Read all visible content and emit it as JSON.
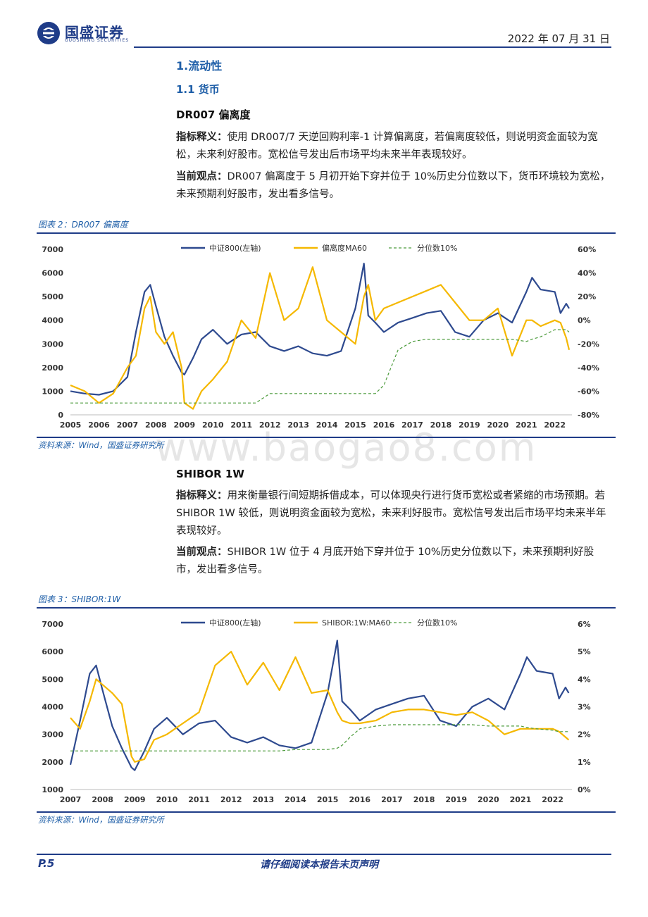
{
  "header": {
    "company_cn": "国盛证券",
    "company_en": "GUOSHENG SECURITIES",
    "date": "2022 年 07 月 31 日"
  },
  "section": {
    "h1": "1.流动性",
    "h2": "1.1 货币"
  },
  "dr007": {
    "title": "DR007 偏离度",
    "def_label": "指标释义：",
    "def_text": "使用 DR007/7 天逆回购利率-1 计算偏离度，若偏离度较低，则说明资金面较为宽松，未来利好股市。宽松信号发出后市场平均未来半年表现较好。",
    "view_label": "当前观点：",
    "view_text": "DR007 偏离度于 5 月初开始下穿并位于 10%历史分位数以下，货币环境较为宽松，未来预期利好股市，发出看多信号。"
  },
  "shibor": {
    "title": "SHIBOR 1W",
    "def_label": "指标释义：",
    "def_text": "用来衡量银行间短期拆借成本，可以体现央行进行货币宽松或者紧缩的市场预期。若 SHIBOR 1W 较低，则说明资金面较为宽松，未来利好股市。宽松信号发出后市场平均未来半年表现较好。",
    "view_label": "当前观点：",
    "view_text": "SHIBOR 1W 位于 4 月底开始下穿并位于 10%历史分位数以下，未来预期利好股市，发出看多信号。"
  },
  "figures": {
    "fig2_caption": "图表 2：DR007 偏离度",
    "fig3_caption": "图表 3：SHIBOR:1W",
    "source1": "资料来源：Wind，国盛证券研究所",
    "source2": "资料来源：Wind，国盛证券研究所"
  },
  "watermark": "www.baogao8.com",
  "footer": {
    "page": "P.5",
    "disclaimer": "请仔细阅读本报告末页声明"
  },
  "colors": {
    "brand": "#1f3c88",
    "series_blue": "#2e4a8f",
    "series_yellow": "#f5b800",
    "series_green": "#4a9a3a"
  },
  "chart_data": [
    {
      "type": "line",
      "title": "",
      "x": [
        2005,
        2005.5,
        2006,
        2006.5,
        2007,
        2007.3,
        2007.6,
        2007.8,
        2008,
        2008.3,
        2008.6,
        2008.9,
        2009,
        2009.3,
        2009.6,
        2010,
        2010.5,
        2011,
        2011.5,
        2012,
        2012.5,
        2013,
        2013.5,
        2014,
        2014.5,
        2015,
        2015.3,
        2015.45,
        2015.7,
        2016,
        2016.5,
        2017,
        2017.5,
        2018,
        2018.5,
        2019,
        2019.5,
        2020,
        2020.5,
        2021,
        2021.2,
        2021.5,
        2022,
        2022.2,
        2022.4,
        2022.5
      ],
      "x_ticks": [
        "2005",
        "2006",
        "2007",
        "2008",
        "2009",
        "2010",
        "2011",
        "2012",
        "2013",
        "2014",
        "2015",
        "2016",
        "2017",
        "2018",
        "2019",
        "2020",
        "2021",
        "2022"
      ],
      "xlim": [
        2005,
        2022.6
      ],
      "series": [
        {
          "name": "中证800(左轴)",
          "axis": "left",
          "color": "#2e4a8f",
          "values": [
            1000,
            900,
            850,
            1000,
            1600,
            3500,
            5200,
            5500,
            4600,
            3300,
            2500,
            1800,
            1700,
            2400,
            3200,
            3600,
            3000,
            3400,
            3500,
            2900,
            2700,
            2900,
            2600,
            2500,
            2700,
            4500,
            6400,
            4200,
            3900,
            3500,
            3900,
            4100,
            4300,
            4400,
            3500,
            3300,
            4000,
            4300,
            3900,
            5200,
            5800,
            5300,
            5200,
            4300,
            4700,
            4500
          ]
        },
        {
          "name": "偏离度MA60",
          "axis": "right",
          "color": "#f5b800",
          "values": [
            -55,
            -60,
            -70,
            -62,
            -40,
            -30,
            10,
            20,
            -10,
            -20,
            -10,
            -40,
            -70,
            -75,
            -60,
            -50,
            -35,
            0,
            -15,
            40,
            0,
            10,
            45,
            0,
            -10,
            -20,
            20,
            30,
            0,
            10,
            15,
            20,
            25,
            30,
            15,
            0,
            0,
            10,
            -30,
            0,
            0,
            -5,
            0,
            -2,
            -15,
            -25
          ]
        },
        {
          "name": "分位数10%",
          "axis": "right",
          "color": "#4a9a3a",
          "values": [
            -70,
            -70,
            -70,
            -70,
            -70,
            -70,
            -70,
            -70,
            -70,
            -70,
            -70,
            -70,
            -70,
            -70,
            -70,
            -70,
            -70,
            -70,
            -70,
            -62,
            -62,
            -62,
            -62,
            -62,
            -62,
            -62,
            -62,
            -62,
            -62,
            -55,
            -25,
            -18,
            -16,
            -16,
            -16,
            -16,
            -16,
            -16,
            -16,
            -18,
            -16,
            -14,
            -8,
            -8,
            -8,
            -10
          ]
        }
      ],
      "ylim_left": [
        0,
        7000
      ],
      "yticks_left": [
        "0",
        "1000",
        "2000",
        "3000",
        "4000",
        "5000",
        "6000",
        "7000"
      ],
      "ylim_right": [
        -80,
        60
      ],
      "yticks_right": [
        "-80%",
        "-60%",
        "-40%",
        "-20%",
        "0%",
        "20%",
        "40%",
        "60%"
      ],
      "legend": "top-center",
      "grid": false
    },
    {
      "type": "line",
      "title": "",
      "x": [
        2007,
        2007.3,
        2007.6,
        2007.8,
        2008,
        2008.3,
        2008.6,
        2008.9,
        2009,
        2009.3,
        2009.6,
        2010,
        2010.5,
        2011,
        2011.5,
        2012,
        2012.5,
        2013,
        2013.5,
        2014,
        2014.5,
        2015,
        2015.3,
        2015.45,
        2015.7,
        2016,
        2016.5,
        2017,
        2017.5,
        2018,
        2018.5,
        2019,
        2019.5,
        2020,
        2020.5,
        2021,
        2021.2,
        2021.5,
        2022,
        2022.2,
        2022.4,
        2022.5
      ],
      "x_ticks": [
        "2007",
        "2008",
        "2009",
        "2010",
        "2011",
        "2012",
        "2013",
        "2014",
        "2015",
        "2016",
        "2017",
        "2018",
        "2019",
        "2020",
        "2021",
        "2022"
      ],
      "xlim": [
        2007,
        2022.6
      ],
      "series": [
        {
          "name": "中证800(左轴)",
          "axis": "left",
          "color": "#2e4a8f",
          "values": [
            1900,
            3500,
            5200,
            5500,
            4600,
            3300,
            2500,
            1800,
            1700,
            2400,
            3200,
            3600,
            3000,
            3400,
            3500,
            2900,
            2700,
            2900,
            2600,
            2500,
            2700,
            4500,
            6400,
            4200,
            3900,
            3500,
            3900,
            4100,
            4300,
            4400,
            3500,
            3300,
            4000,
            4300,
            3900,
            5200,
            5800,
            5300,
            5200,
            4300,
            4700,
            4500
          ]
        },
        {
          "name": "SHIBOR:1W:MA60",
          "axis": "right",
          "color": "#f5b800",
          "values": [
            2.6,
            2.2,
            3.2,
            4.0,
            3.8,
            3.5,
            3.1,
            1.2,
            1.0,
            1.1,
            1.8,
            2.0,
            2.4,
            2.8,
            4.5,
            5.0,
            3.8,
            4.6,
            3.6,
            4.8,
            3.5,
            3.6,
            2.8,
            2.5,
            2.4,
            2.4,
            2.5,
            2.8,
            2.9,
            2.9,
            2.8,
            2.7,
            2.8,
            2.5,
            2.0,
            2.2,
            2.2,
            2.2,
            2.2,
            2.1,
            1.9,
            1.8
          ]
        },
        {
          "name": "分位数10%",
          "axis": "right",
          "color": "#4a9a3a",
          "values": [
            1.4,
            1.4,
            1.4,
            1.4,
            1.4,
            1.4,
            1.4,
            1.4,
            1.4,
            1.4,
            1.4,
            1.4,
            1.4,
            1.4,
            1.4,
            1.4,
            1.4,
            1.4,
            1.4,
            1.45,
            1.45,
            1.45,
            1.5,
            1.6,
            1.9,
            2.2,
            2.3,
            2.35,
            2.35,
            2.35,
            2.35,
            2.35,
            2.35,
            2.3,
            2.3,
            2.3,
            2.25,
            2.2,
            2.15,
            2.1,
            2.1,
            2.1
          ]
        }
      ],
      "ylim_left": [
        1000,
        7000
      ],
      "yticks_left": [
        "1000",
        "2000",
        "3000",
        "4000",
        "5000",
        "6000",
        "7000"
      ],
      "ylim_right": [
        0,
        6
      ],
      "yticks_right": [
        "0%",
        "1%",
        "2%",
        "3%",
        "4%",
        "5%",
        "6%"
      ],
      "legend": "top-center",
      "grid": false
    }
  ]
}
